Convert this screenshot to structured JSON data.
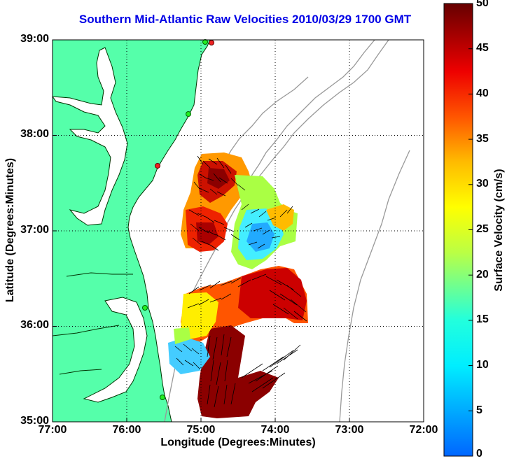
{
  "title": "Southern Mid-Atlantic Raw Velocities 2010/03/29 1700 GMT",
  "x_axis": {
    "label": "Longitude (Degrees:Minutes)",
    "ticks": [
      "77:00",
      "76:00",
      "75:00",
      "74:00",
      "73:00",
      "72:00"
    ]
  },
  "y_axis": {
    "label": "Latitude (Degrees:Minutes)",
    "ticks": [
      "39:00",
      "38:00",
      "37:00",
      "36:00",
      "35:00"
    ]
  },
  "colorbar": {
    "label": "Surface Velocity (cm/s)",
    "ticks": [
      "50",
      "45",
      "40",
      "35",
      "30",
      "25",
      "20",
      "15",
      "10",
      "5",
      "0"
    ],
    "min": 0,
    "max": 50
  },
  "map_extent": {
    "lon_range": [
      -77,
      -72
    ],
    "lat_range": [
      35,
      39
    ]
  },
  "colors": {
    "land": "#55ffaa",
    "coast": "#003300",
    "bathymetry": "#999999",
    "title": "#0000e6",
    "station_green": "#22ee22",
    "station_red": "#ee2222"
  }
}
